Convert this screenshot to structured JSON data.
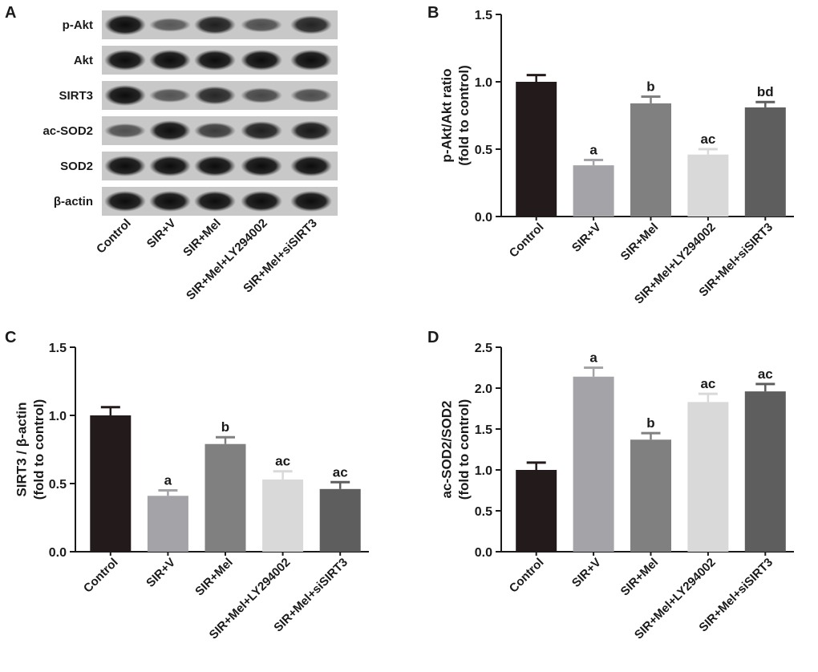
{
  "panel_labels": {
    "a": "A",
    "b": "B",
    "c": "C",
    "d": "D"
  },
  "blot": {
    "rows": [
      "p-Akt",
      "Akt",
      "SIRT3",
      "ac-SOD2",
      "SOD2",
      "β-actin"
    ],
    "lanes": [
      "Control",
      "SIR+V",
      "SIR+Mel",
      "SIR+Mel+LY294002",
      "SIR+Mel+siSIRT3"
    ],
    "band_intensity": [
      [
        1.0,
        0.38,
        0.84,
        0.46,
        0.81
      ],
      [
        1.0,
        1.0,
        1.0,
        1.0,
        1.0
      ],
      [
        1.0,
        0.41,
        0.79,
        0.53,
        0.46
      ],
      [
        0.45,
        0.98,
        0.62,
        0.84,
        0.9
      ],
      [
        1.0,
        1.0,
        1.0,
        1.0,
        1.0
      ],
      [
        1.0,
        1.0,
        1.0,
        1.0,
        1.0
      ]
    ]
  },
  "bar_colors": [
    "#231b1b",
    "#a3a3a8",
    "#808080",
    "#d8d9d8",
    "#5e5e5e"
  ],
  "chart_data": [
    {
      "id": "B",
      "type": "bar",
      "categories": [
        "Control",
        "SIR+V",
        "SIR+Mel",
        "SIR+Mel+LY294002",
        "SIR+Mel+siSIRT3"
      ],
      "values": [
        1.0,
        0.38,
        0.84,
        0.46,
        0.81
      ],
      "errors": [
        0.05,
        0.04,
        0.05,
        0.04,
        0.04
      ],
      "annotations": [
        "",
        "a",
        "b",
        "ac",
        "bd"
      ],
      "ylabel_lines": [
        "p-Akt/Akt ratio",
        "(fold to control)"
      ],
      "xlabel": "",
      "ylim": [
        0,
        1.5
      ],
      "yticks": [
        0.0,
        0.5,
        1.0,
        1.5
      ],
      "ytick_labels": [
        "0.0",
        "0.5",
        "1.0",
        "1.5"
      ]
    },
    {
      "id": "C",
      "type": "bar",
      "categories": [
        "Control",
        "SIR+V",
        "SIR+Mel",
        "SIR+Mel+LY294002",
        "SIR+Mel+siSIRT3"
      ],
      "values": [
        1.0,
        0.41,
        0.79,
        0.53,
        0.46
      ],
      "errors": [
        0.06,
        0.04,
        0.05,
        0.06,
        0.05
      ],
      "annotations": [
        "",
        "a",
        "b",
        "ac",
        "ac"
      ],
      "ylabel_lines": [
        "SIRT3 / β-actin",
        "(fold to control)"
      ],
      "xlabel": "",
      "ylim": [
        0,
        1.5
      ],
      "yticks": [
        0.0,
        0.5,
        1.0,
        1.5
      ],
      "ytick_labels": [
        "0.0",
        "0.5",
        "1.0",
        "1.5"
      ]
    },
    {
      "id": "D",
      "type": "bar",
      "categories": [
        "Control",
        "SIR+V",
        "SIR+Mel",
        "SIR+Mel+LY294002",
        "SIR+Mel+siSIRT3"
      ],
      "values": [
        1.0,
        2.14,
        1.37,
        1.83,
        1.96
      ],
      "errors": [
        0.09,
        0.11,
        0.08,
        0.1,
        0.09
      ],
      "annotations": [
        "",
        "a",
        "b",
        "ac",
        "ac"
      ],
      "ylabel_lines": [
        "ac-SOD2/SOD2",
        "(fold to control)"
      ],
      "xlabel": "",
      "ylim": [
        0,
        2.5
      ],
      "yticks": [
        0.0,
        0.5,
        1.0,
        1.5,
        2.0,
        2.5
      ],
      "ytick_labels": [
        "0.0",
        "0.5",
        "1.0",
        "1.5",
        "2.0",
        "2.5"
      ]
    }
  ]
}
